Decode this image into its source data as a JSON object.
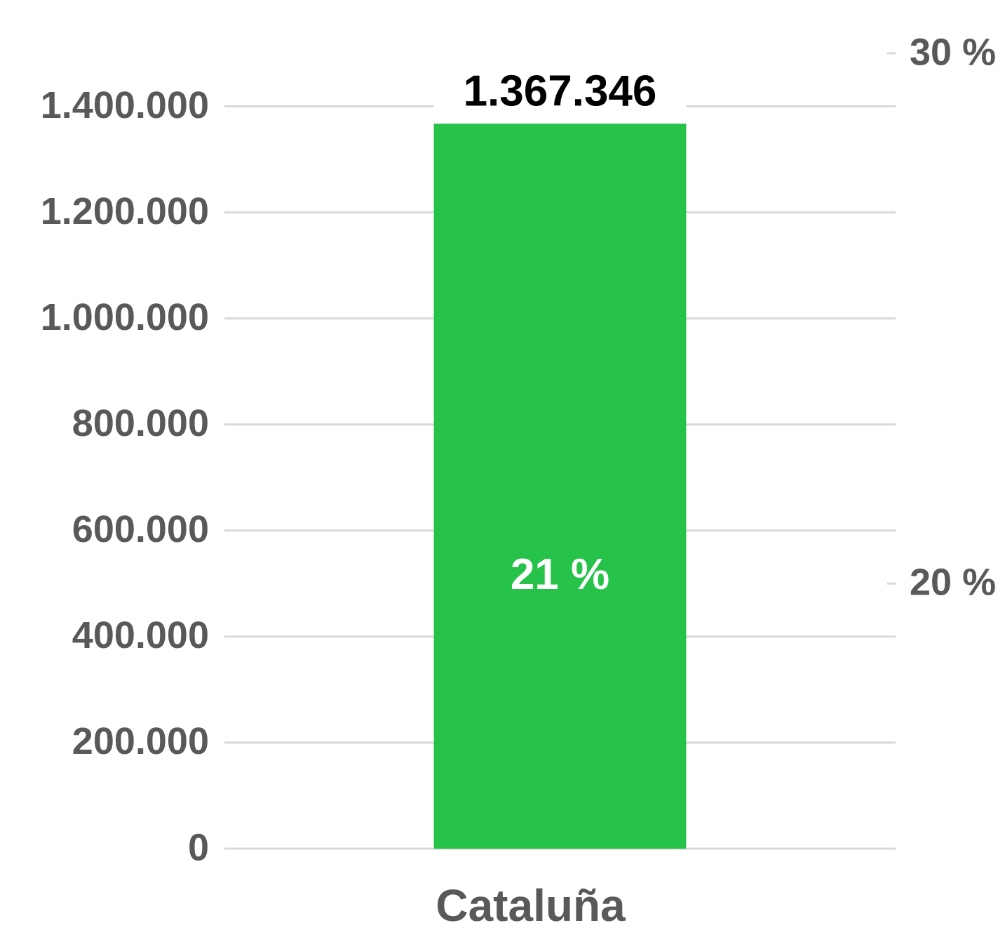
{
  "chart_data": {
    "type": "bar",
    "categories": [
      "Cataluña"
    ],
    "values": [
      1367346
    ],
    "value_labels": [
      "1.367.346"
    ],
    "color": "#26c24a",
    "ylim": [
      0,
      1500000
    ],
    "yticks": [
      0,
      {
        "value": 200000,
        "label": "200.000"
      },
      {
        "value": 400000,
        "label": "400.000"
      },
      {
        "value": 600000,
        "label": "600.000"
      },
      {
        "value": 800000,
        "label": "800.000"
      },
      {
        "value": 1000000,
        "label": "1.000.000"
      },
      {
        "value": 1200000,
        "label": "1.200.000"
      },
      {
        "value": 1400000,
        "label": "1.400.000"
      }
    ],
    "y2lim": [
      15,
      30
    ],
    "y2ticks": [
      {
        "value": 20,
        "label": "20 %"
      },
      {
        "value": 30,
        "label": "30 %"
      }
    ],
    "share": {
      "axis": "y2",
      "values": [
        21
      ],
      "value_labels": [
        "21 %"
      ]
    },
    "grid": true
  }
}
